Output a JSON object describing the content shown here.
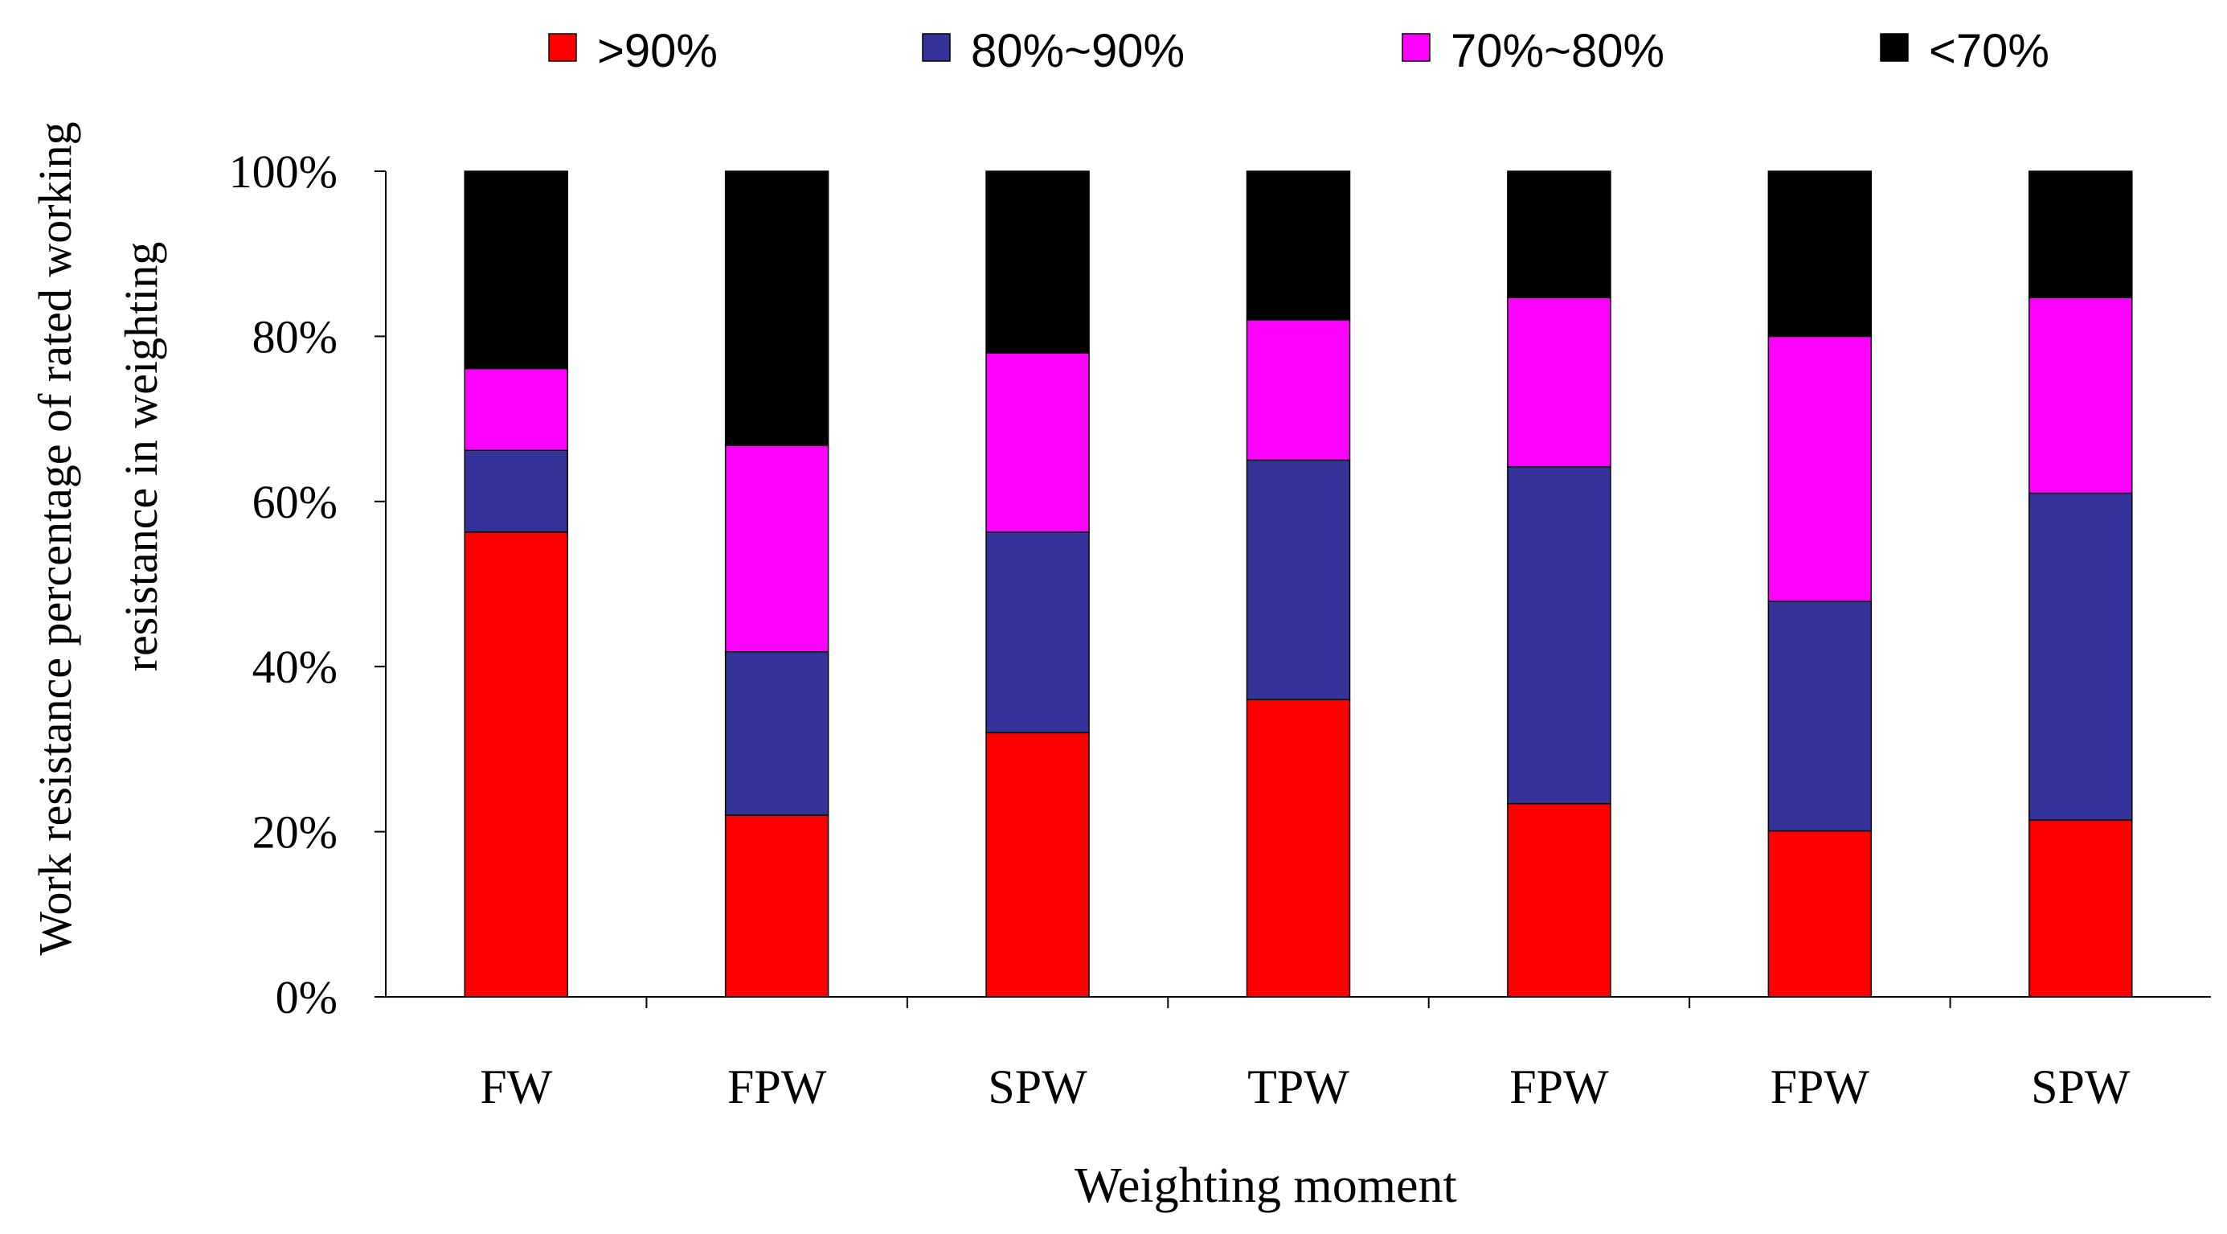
{
  "chart_data": {
    "type": "bar",
    "stacked": true,
    "title": "",
    "xlabel": "Weighting moment",
    "ylabel_lines": [
      "Work resistance percentage of rated working",
      "resistance in weighting"
    ],
    "categories": [
      "FW",
      "FPW",
      "SPW",
      "TPW",
      "FPW",
      "FPW",
      "SPW"
    ],
    "ylim": [
      0,
      100
    ],
    "yticks": [
      "0%",
      "20%",
      "40%",
      "60%",
      "80%",
      "100%"
    ],
    "ytick_values": [
      0,
      20,
      40,
      60,
      80,
      100
    ],
    "legend_position": "top",
    "series": [
      {
        "name": ">90%",
        "color": "#ff0000",
        "values": [
          56.3,
          22.0,
          32.0,
          36.0,
          23.4,
          20.1,
          21.4
        ]
      },
      {
        "name": "80%~90%",
        "color": "#333399",
        "values": [
          9.9,
          19.8,
          24.3,
          29.0,
          40.8,
          27.8,
          39.6
        ]
      },
      {
        "name": "70%~80%",
        "color": "#ff00ff",
        "values": [
          9.9,
          25.0,
          21.7,
          17.0,
          20.5,
          32.1,
          23.7
        ]
      },
      {
        "name": "<70%",
        "color": "#000000",
        "values": [
          23.9,
          33.2,
          22.0,
          18.0,
          15.3,
          20.0,
          15.3
        ]
      }
    ]
  }
}
